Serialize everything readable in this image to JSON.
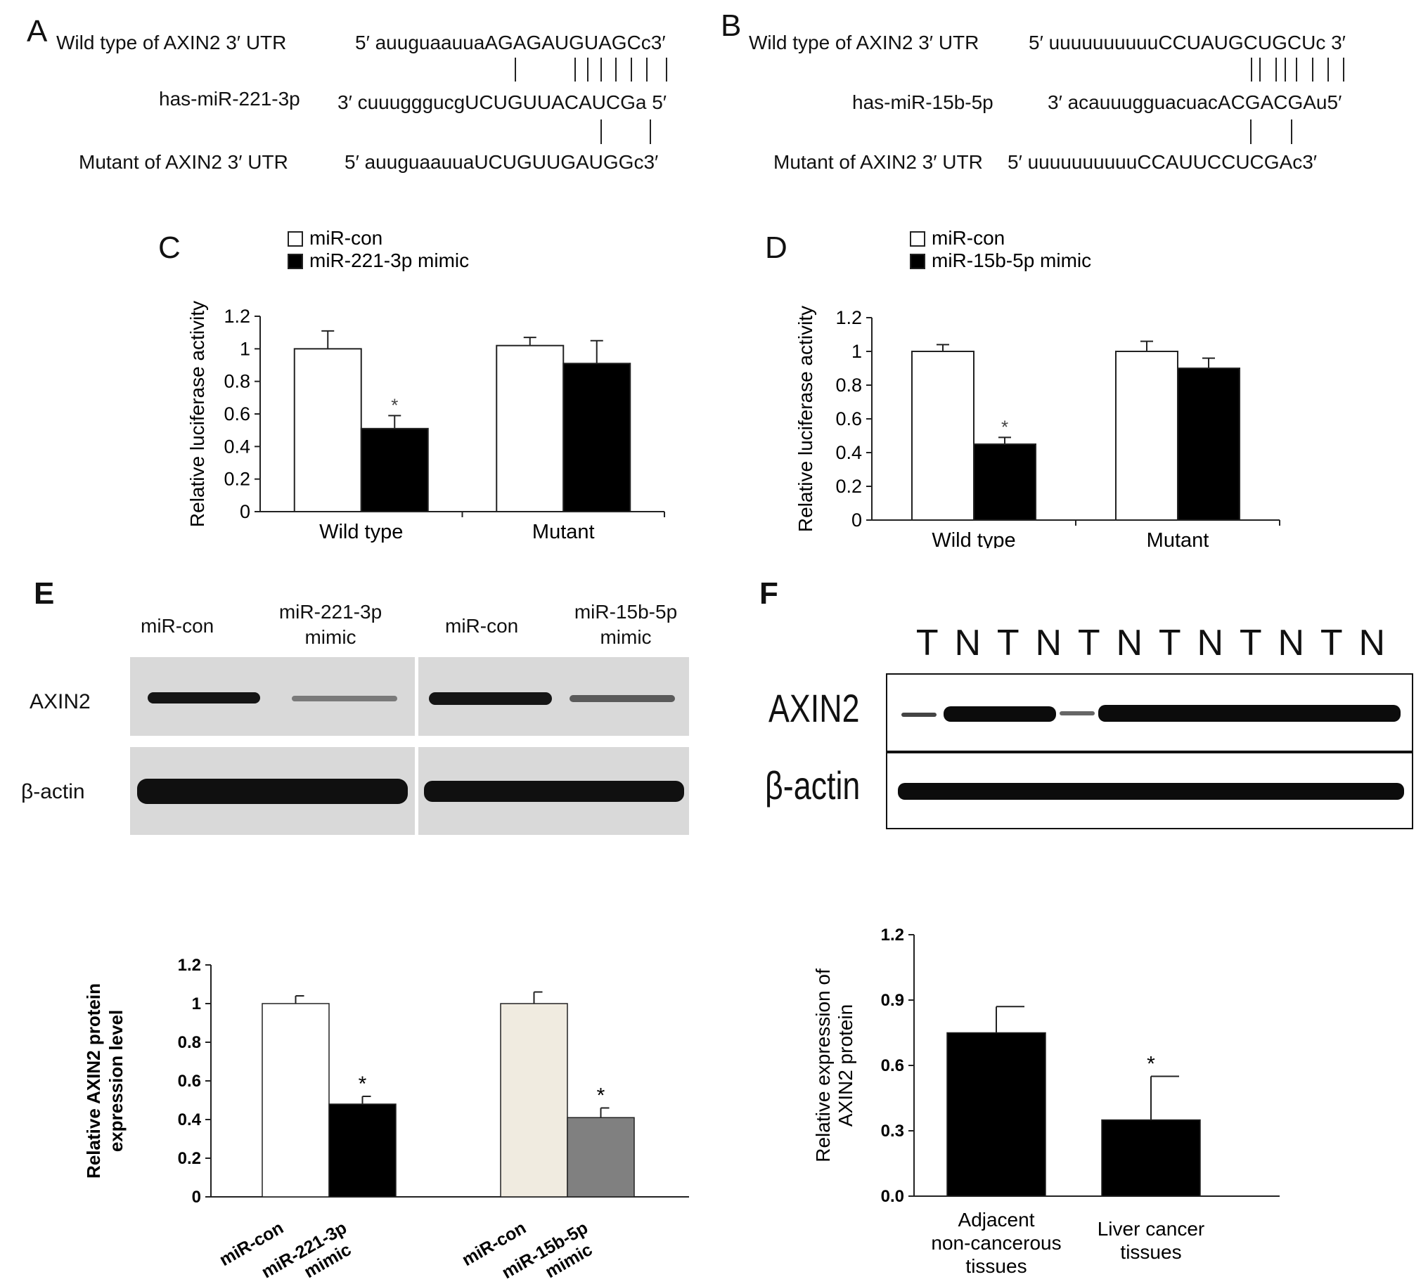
{
  "panels": {
    "A": {
      "letter": "A",
      "rows": [
        {
          "label": "Wild type of AXIN2 3′ UTR",
          "seq": "5′ auuguaauuaAGAGAUGUAGCc3′"
        },
        {
          "label": "has-miR-221-3p",
          "seq": "3′ cuuugggucgUCUGUUACAUCGa 5′"
        },
        {
          "label": "Mutant of AXIN2 3′ UTR",
          "seq": "5′ auuguaauuaUCUGUUGAUGGc3′"
        }
      ]
    },
    "B": {
      "letter": "B",
      "rows": [
        {
          "label": "Wild type of AXIN2 3′ UTR",
          "seq": "5′ uuuuuuuuuuCCUAUGCUGCUc 3′"
        },
        {
          "label": "has-miR-15b-5p",
          "seq": "3′ acauuugguacuacACGACGAu5′"
        },
        {
          "label": "Mutant of AXIN2 3′ UTR",
          "seq": "5′ uuuuuuuuuuCCAUUCCUCGAc3′"
        }
      ]
    },
    "C": {
      "letter": "C"
    },
    "D": {
      "letter": "D"
    },
    "E": {
      "letter": "E",
      "blot_headers": [
        "miR-con",
        "miR-221-3p\nmimic",
        "miR-con",
        "miR-15b-5p\nmimic"
      ],
      "blot_rows": [
        "AXIN2",
        "β-actin"
      ]
    },
    "F": {
      "letter": "F",
      "lanes": [
        "T",
        "N",
        "T",
        "N",
        "T",
        "N",
        "T",
        "N",
        "T",
        "N",
        "T",
        "N"
      ],
      "blot_rows": [
        "AXIN2",
        "β-actin"
      ]
    }
  },
  "chart_data": [
    {
      "id": "C",
      "type": "bar",
      "categories": [
        "Wild type",
        "Mutant"
      ],
      "series": [
        {
          "name": "miR-con",
          "values": [
            1.0,
            1.02
          ],
          "errors": [
            0.11,
            0.05
          ],
          "color": "#ffffff"
        },
        {
          "name": "miR-221-3p mimic",
          "values": [
            0.51,
            0.91
          ],
          "errors": [
            0.08,
            0.14
          ],
          "color": "#000000"
        }
      ],
      "annotations": [
        {
          "category": 0,
          "series": 1,
          "text": "*"
        }
      ],
      "ylabel": "Relative luciferase activity",
      "ylim": [
        0,
        1.2
      ],
      "yticks": [
        "0",
        "0.2",
        "0.4",
        "0.6",
        "0.8",
        "1",
        "1.2"
      ],
      "legend": "top-left"
    },
    {
      "id": "D",
      "type": "bar",
      "categories": [
        "Wild type",
        "Mutant"
      ],
      "series": [
        {
          "name": "miR-con",
          "values": [
            1.0,
            1.0
          ],
          "errors": [
            0.04,
            0.06
          ],
          "color": "#ffffff"
        },
        {
          "name": "miR-15b-5p mimic",
          "values": [
            0.45,
            0.9
          ],
          "errors": [
            0.04,
            0.06
          ],
          "color": "#000000"
        }
      ],
      "annotations": [
        {
          "category": 0,
          "series": 1,
          "text": "*"
        }
      ],
      "ylabel": "Relative luciferase activity",
      "ylim": [
        0,
        1.2
      ],
      "yticks": [
        "0",
        "0.2",
        "0.4",
        "0.6",
        "0.8",
        "1",
        "1.2"
      ],
      "legend": "top-left"
    },
    {
      "id": "E",
      "type": "bar",
      "categories": [
        "miR-con",
        "miR-221-3p mimic",
        "miR-con",
        "miR-15b-5p mimic"
      ],
      "values": [
        1.0,
        0.48,
        1.0,
        0.41
      ],
      "errors": [
        0.04,
        0.04,
        0.06,
        0.05
      ],
      "colors": [
        "#ffffff",
        "#000000",
        "#f0ebe0",
        "#808080"
      ],
      "annotations": [
        {
          "index": 1,
          "text": "*"
        },
        {
          "index": 3,
          "text": "*"
        }
      ],
      "ylabel": "Relative AXIN2 protein expression level",
      "ylim": [
        0,
        1.2
      ],
      "yticks": [
        "0",
        "0.2",
        "0.4",
        "0.6",
        "0.8",
        "1",
        "1.2"
      ]
    },
    {
      "id": "F",
      "type": "bar",
      "categories": [
        "Adjacent non-cancerous tissues",
        "Liver cancer tissues"
      ],
      "values": [
        0.75,
        0.35
      ],
      "errors": [
        0.12,
        0.2
      ],
      "colors": [
        "#000000",
        "#000000"
      ],
      "annotations": [
        {
          "index": 1,
          "text": "*"
        }
      ],
      "ylabel": "Relative expression of AXIN2 protein",
      "ylim": [
        0,
        1.2
      ],
      "yticks": [
        "0.0",
        "0.3",
        "0.6",
        "0.9",
        "1.2"
      ]
    }
  ]
}
